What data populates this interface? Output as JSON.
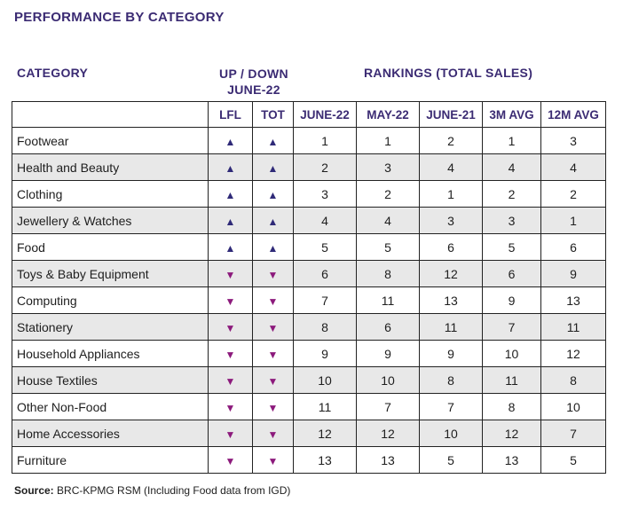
{
  "title": "PERFORMANCE BY CATEGORY",
  "headers": {
    "category": "CATEGORY",
    "updown_line1": "UP / DOWN",
    "updown_line2": "JUNE-22",
    "rankings": "RANKINGS (TOTAL SALES)"
  },
  "columns": [
    "",
    "LFL",
    "TOT",
    "JUNE-22",
    "MAY-22",
    "JUNE-21",
    "3M AVG",
    "12M AVG"
  ],
  "rows": [
    {
      "category": "Footwear",
      "lfl": "up",
      "tot": "up",
      "june22": "1",
      "may22": "1",
      "june21": "2",
      "avg3m": "1",
      "avg12m": "3"
    },
    {
      "category": "Health and Beauty",
      "lfl": "up",
      "tot": "up",
      "june22": "2",
      "may22": "3",
      "june21": "4",
      "avg3m": "4",
      "avg12m": "4"
    },
    {
      "category": "Clothing",
      "lfl": "up",
      "tot": "up",
      "june22": "3",
      "may22": "2",
      "june21": "1",
      "avg3m": "2",
      "avg12m": "2"
    },
    {
      "category": "Jewellery & Watches",
      "lfl": "up",
      "tot": "up",
      "june22": "4",
      "may22": "4",
      "june21": "3",
      "avg3m": "3",
      "avg12m": "1"
    },
    {
      "category": "Food",
      "lfl": "up",
      "tot": "up",
      "june22": "5",
      "may22": "5",
      "june21": "6",
      "avg3m": "5",
      "avg12m": "6"
    },
    {
      "category": "Toys & Baby Equipment",
      "lfl": "down",
      "tot": "down",
      "june22": "6",
      "may22": "8",
      "june21": "12",
      "avg3m": "6",
      "avg12m": "9"
    },
    {
      "category": "Computing",
      "lfl": "down",
      "tot": "down",
      "june22": "7",
      "may22": "11",
      "june21": "13",
      "avg3m": "9",
      "avg12m": "13"
    },
    {
      "category": "Stationery",
      "lfl": "down",
      "tot": "down",
      "june22": "8",
      "may22": "6",
      "june21": "11",
      "avg3m": "7",
      "avg12m": "11"
    },
    {
      "category": "Household Appliances",
      "lfl": "down",
      "tot": "down",
      "june22": "9",
      "may22": "9",
      "june21": "9",
      "avg3m": "10",
      "avg12m": "12"
    },
    {
      "category": "House Textiles",
      "lfl": "down",
      "tot": "down",
      "june22": "10",
      "may22": "10",
      "june21": "8",
      "avg3m": "11",
      "avg12m": "8"
    },
    {
      "category": "Other Non-Food",
      "lfl": "down",
      "tot": "down",
      "june22": "11",
      "may22": "7",
      "june21": "7",
      "avg3m": "8",
      "avg12m": "10"
    },
    {
      "category": "Home Accessories",
      "lfl": "down",
      "tot": "down",
      "june22": "12",
      "may22": "12",
      "june21": "10",
      "avg3m": "12",
      "avg12m": "7"
    },
    {
      "category": "Furniture",
      "lfl": "down",
      "tot": "down",
      "june22": "13",
      "may22": "13",
      "june21": "5",
      "avg3m": "13",
      "avg12m": "5"
    }
  ],
  "icons": {
    "up": "triangle-up-icon",
    "down": "triangle-down-icon"
  },
  "colors": {
    "heading": "#3b2b73",
    "up": "#2f2a78",
    "down": "#8c1a7c",
    "row_alt": "#e8e8e8"
  },
  "source": {
    "label": "Source:",
    "text": " BRC-KPMG RSM (Including Food data from IGD)"
  }
}
